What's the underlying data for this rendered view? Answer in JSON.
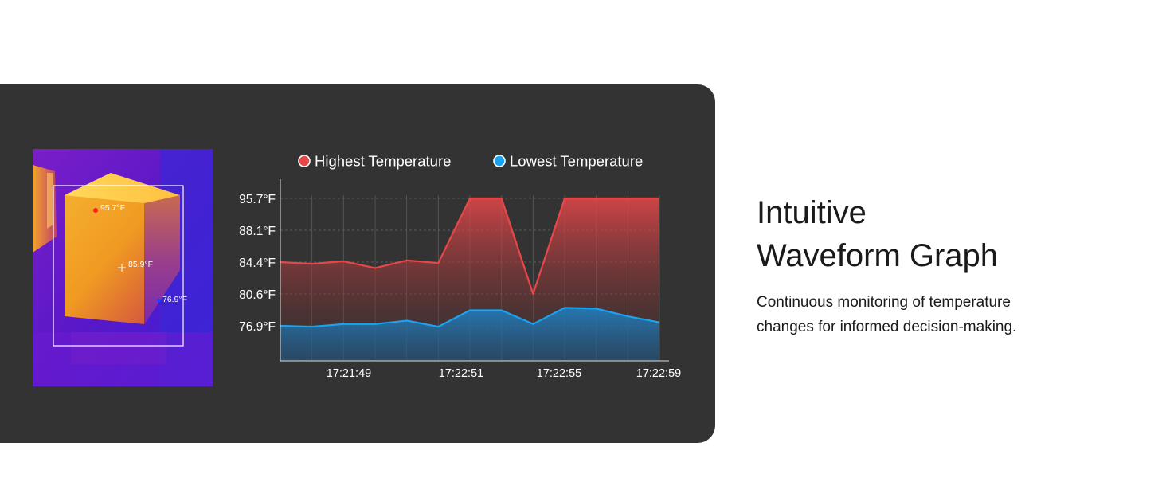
{
  "heading": {
    "line1": "Intuitive",
    "line2": "Waveform Graph"
  },
  "description": "Continuous monitoring of temperature changes for informed decision-making.",
  "thermal_image": {
    "max_label": "95.7°F",
    "center_label": "85.9°F",
    "min_label": "76.9°F"
  },
  "colors": {
    "panel": "#333333",
    "high": "#e8474a",
    "low": "#1aa3f0"
  },
  "chart_data": {
    "type": "area",
    "legend": [
      "Highest Temperature",
      "Lowest Temperature"
    ],
    "legend_position": "top",
    "y_ticks": [
      "95.7°F",
      "88.1°F",
      "84.4°F",
      "80.6°F",
      "76.9°F"
    ],
    "x_ticks": [
      "17:21:49",
      "17:22:51",
      "17:22:55",
      "17:22:59"
    ],
    "grid": true,
    "series": [
      {
        "name": "Highest Temperature",
        "color": "#e8474a",
        "values": [
          84.4,
          84.2,
          84.5,
          83.7,
          84.6,
          84.3,
          95.7,
          95.7,
          80.6,
          95.7,
          95.7,
          95.7,
          95.7
        ]
      },
      {
        "name": "Lowest Temperature",
        "color": "#1aa3f0",
        "values": [
          76.9,
          76.8,
          77.1,
          77.1,
          77.5,
          76.8,
          78.7,
          78.7,
          77.1,
          79.0,
          78.9,
          78.0,
          77.3
        ]
      }
    ]
  }
}
